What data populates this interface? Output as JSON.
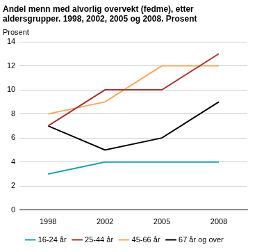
{
  "chart_data": {
    "type": "line",
    "title": "Andel menn med alvorlig overvekt (fedme), etter aldersgrupper. 1998, 2002, 2005 og 2008. Prosent",
    "ylabel": "Prosent",
    "categories": [
      "1998",
      "2002",
      "2005",
      "2008"
    ],
    "series": [
      {
        "name": "16-24 år",
        "color": "#1ba3b3",
        "values": [
          3,
          4,
          4,
          4
        ]
      },
      {
        "name": "25-44 år",
        "color": "#a8322d",
        "values": [
          7,
          10,
          10,
          13
        ]
      },
      {
        "name": "45-66 år",
        "color": "#f5a95a",
        "values": [
          8,
          9,
          12,
          12
        ]
      },
      {
        "name": "67 år og over",
        "color": "#000000",
        "values": [
          7,
          5,
          6,
          9
        ]
      }
    ],
    "ylim": [
      0,
      14
    ],
    "yticks": [
      0,
      2,
      4,
      6,
      8,
      10,
      12,
      14
    ],
    "grid": true,
    "legend": "bottom"
  }
}
